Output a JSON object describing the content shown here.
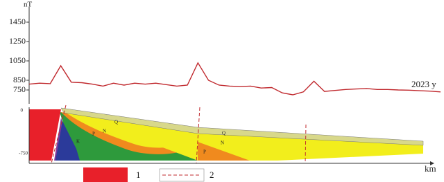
{
  "chart_data": {
    "type": "line",
    "y_label": "nT",
    "x_label": "km",
    "series": [
      {
        "name": "2023 y",
        "color": "#c0282d",
        "values": [
          810,
          820,
          815,
          1000,
          830,
          825,
          810,
          790,
          820,
          800,
          820,
          810,
          820,
          805,
          790,
          800,
          1030,
          850,
          800,
          790,
          785,
          790,
          770,
          775,
          720,
          700,
          730,
          840,
          735,
          745,
          755,
          760,
          765,
          755,
          755,
          750,
          748,
          742,
          738,
          730
        ]
      }
    ],
    "ylim": [
      700,
      1550
    ],
    "yticks": [
      750,
      850,
      1050,
      1250,
      1450
    ],
    "grid": false
  },
  "section": {
    "depth_ticks": [
      0,
      -750
    ],
    "unit_labels": [
      "Q",
      "N",
      "P",
      "K",
      "Q",
      "N",
      "P"
    ],
    "legend": [
      "1",
      "2"
    ]
  }
}
